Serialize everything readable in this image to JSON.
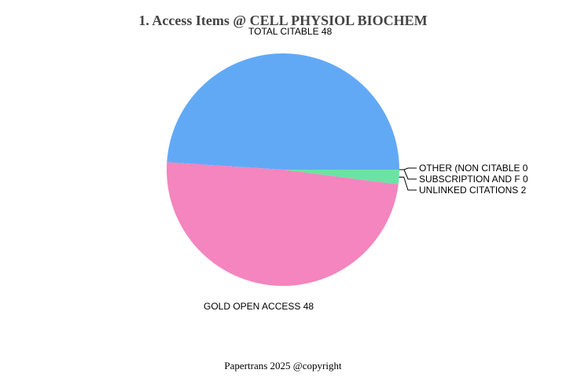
{
  "chart_data": {
    "type": "pie",
    "title": "1. Access Items @ CELL PHYSIOL BIOCHEM",
    "slices": [
      {
        "label": "TOTAL CITABLE",
        "value": 48,
        "color": "#62a9f5"
      },
      {
        "label": "OTHER (NON CITABLE",
        "value": 0,
        "color": "#9be38a"
      },
      {
        "label": "SUBSCRIPTION AND F",
        "value": 0,
        "color": "#7de8b0"
      },
      {
        "label": "UNLINKED CITATIONS",
        "value": 2,
        "color": "#6ae3a4"
      },
      {
        "label": "GOLD OPEN ACCESS",
        "value": 48,
        "color": "#f485be"
      }
    ],
    "legend": "none",
    "data_labels": "label and value"
  },
  "footer": "Papertrans 2025 @copyright"
}
